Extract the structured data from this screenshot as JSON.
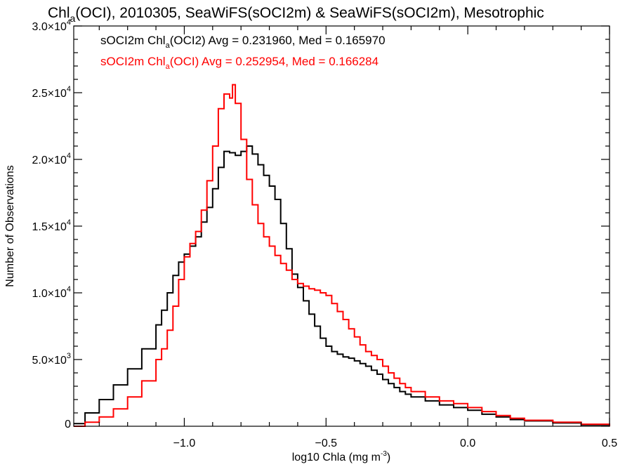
{
  "colors": {
    "series_1": "#000000",
    "series_2": "#ff0000",
    "axes": "#000000",
    "background": "#ffffff"
  },
  "chart_data": {
    "type": "line",
    "title": {
      "prefix": "Chl",
      "prefix_sub": "a",
      "rest": "(OCI), 2010305, SeaWiFS(sOCI2m) & SeaWiFS(sOCI2m), Mesotrophic"
    },
    "xlabel": {
      "main": "log10 Chla (mg m",
      "sup": "-3",
      "end": ")"
    },
    "ylabel": "Number of Observations",
    "xlim": [
      -1.39,
      0.5
    ],
    "ylim": [
      0,
      30000
    ],
    "x_ticks": [
      {
        "value": -1.0,
        "label": "−1.0"
      },
      {
        "value": -0.5,
        "label": "−0.5"
      },
      {
        "value": 0.0,
        "label": "0.0"
      },
      {
        "value": 0.5,
        "label": "0.5"
      }
    ],
    "y_ticks": [
      {
        "value": 0,
        "mantissa": "0",
        "exponent": ""
      },
      {
        "value": 5000,
        "mantissa": "5.0×10",
        "exponent": "3"
      },
      {
        "value": 10000,
        "mantissa": "1.0×10",
        "exponent": "4"
      },
      {
        "value": 15000,
        "mantissa": "1.5×10",
        "exponent": "4"
      },
      {
        "value": 20000,
        "mantissa": "2.0×10",
        "exponent": "4"
      },
      {
        "value": 25000,
        "mantissa": "2.5×10",
        "exponent": "4"
      },
      {
        "value": 30000,
        "mantissa": "3.0×10",
        "exponent": "4"
      }
    ],
    "legend_position": "top-left",
    "legend": [
      {
        "pre": "sOCI2m Chl",
        "sub": "a",
        "post": "(OCI2) Avg = 0.231960, Med = 0.165970",
        "color": "#000000"
      },
      {
        "pre": "sOCI2m Chl",
        "sub": "a",
        "post": "(OCI) Avg = 0.252954, Med = 0.166284",
        "color": "#ff0000"
      }
    ],
    "series": [
      {
        "color": "#000000",
        "points": [
          [
            -1.39,
            200
          ],
          [
            -1.35,
            1000
          ],
          [
            -1.3,
            2000
          ],
          [
            -1.25,
            3100
          ],
          [
            -1.2,
            4300
          ],
          [
            -1.15,
            5800
          ],
          [
            -1.1,
            7600
          ],
          [
            -1.08,
            8700
          ],
          [
            -1.06,
            10000
          ],
          [
            -1.04,
            11300
          ],
          [
            -1.02,
            12300
          ],
          [
            -1.0,
            12900
          ],
          [
            -0.98,
            13500
          ],
          [
            -0.96,
            14200
          ],
          [
            -0.94,
            15300
          ],
          [
            -0.92,
            16400
          ],
          [
            -0.9,
            17800
          ],
          [
            -0.88,
            19400
          ],
          [
            -0.86,
            20600
          ],
          [
            -0.84,
            20500
          ],
          [
            -0.82,
            20300
          ],
          [
            -0.8,
            20600
          ],
          [
            -0.78,
            21000
          ],
          [
            -0.76,
            20400
          ],
          [
            -0.74,
            19600
          ],
          [
            -0.72,
            18800
          ],
          [
            -0.7,
            18000
          ],
          [
            -0.68,
            17000
          ],
          [
            -0.66,
            15200
          ],
          [
            -0.64,
            13300
          ],
          [
            -0.62,
            11400
          ],
          [
            -0.6,
            10400
          ],
          [
            -0.58,
            9400
          ],
          [
            -0.56,
            8400
          ],
          [
            -0.54,
            7500
          ],
          [
            -0.52,
            6600
          ],
          [
            -0.5,
            6000
          ],
          [
            -0.48,
            5600
          ],
          [
            -0.46,
            5400
          ],
          [
            -0.44,
            5200
          ],
          [
            -0.42,
            5100
          ],
          [
            -0.4,
            4900
          ],
          [
            -0.38,
            4700
          ],
          [
            -0.36,
            4500
          ],
          [
            -0.34,
            4200
          ],
          [
            -0.32,
            3900
          ],
          [
            -0.3,
            3500
          ],
          [
            -0.28,
            3200
          ],
          [
            -0.26,
            2900
          ],
          [
            -0.24,
            2600
          ],
          [
            -0.22,
            2400
          ],
          [
            -0.2,
            2200
          ],
          [
            -0.15,
            1900
          ],
          [
            -0.1,
            1600
          ],
          [
            -0.05,
            1400
          ],
          [
            0.0,
            1200
          ],
          [
            0.05,
            900
          ],
          [
            0.1,
            700
          ],
          [
            0.15,
            500
          ],
          [
            0.2,
            400
          ],
          [
            0.3,
            250
          ],
          [
            0.4,
            100
          ],
          [
            0.5,
            0
          ]
        ]
      },
      {
        "color": "#ff0000",
        "points": [
          [
            -1.39,
            0
          ],
          [
            -1.35,
            300
          ],
          [
            -1.3,
            700
          ],
          [
            -1.25,
            1300
          ],
          [
            -1.2,
            2200
          ],
          [
            -1.15,
            3400
          ],
          [
            -1.1,
            5000
          ],
          [
            -1.08,
            5800
          ],
          [
            -1.06,
            7200
          ],
          [
            -1.04,
            9000
          ],
          [
            -1.02,
            11000
          ],
          [
            -1.0,
            12700
          ],
          [
            -0.98,
            13700
          ],
          [
            -0.96,
            14600
          ],
          [
            -0.94,
            16200
          ],
          [
            -0.92,
            18400
          ],
          [
            -0.9,
            21000
          ],
          [
            -0.88,
            23800
          ],
          [
            -0.86,
            24900
          ],
          [
            -0.84,
            24600
          ],
          [
            -0.83,
            25600
          ],
          [
            -0.82,
            24200
          ],
          [
            -0.8,
            21500
          ],
          [
            -0.78,
            18500
          ],
          [
            -0.76,
            16600
          ],
          [
            -0.74,
            15200
          ],
          [
            -0.72,
            14200
          ],
          [
            -0.7,
            13500
          ],
          [
            -0.68,
            12800
          ],
          [
            -0.66,
            12200
          ],
          [
            -0.64,
            11700
          ],
          [
            -0.62,
            11000
          ],
          [
            -0.6,
            10700
          ],
          [
            -0.58,
            10500
          ],
          [
            -0.56,
            10300
          ],
          [
            -0.54,
            10200
          ],
          [
            -0.52,
            10000
          ],
          [
            -0.5,
            9800
          ],
          [
            -0.48,
            9200
          ],
          [
            -0.46,
            8600
          ],
          [
            -0.44,
            8000
          ],
          [
            -0.42,
            7300
          ],
          [
            -0.4,
            6700
          ],
          [
            -0.38,
            6100
          ],
          [
            -0.36,
            5600
          ],
          [
            -0.34,
            5300
          ],
          [
            -0.32,
            5000
          ],
          [
            -0.3,
            4500
          ],
          [
            -0.28,
            4000
          ],
          [
            -0.26,
            3600
          ],
          [
            -0.24,
            3200
          ],
          [
            -0.22,
            2900
          ],
          [
            -0.2,
            2600
          ],
          [
            -0.15,
            2200
          ],
          [
            -0.1,
            1900
          ],
          [
            -0.05,
            1700
          ],
          [
            0.0,
            1400
          ],
          [
            0.05,
            1100
          ],
          [
            0.1,
            800
          ],
          [
            0.15,
            600
          ],
          [
            0.2,
            450
          ],
          [
            0.3,
            300
          ],
          [
            0.4,
            150
          ],
          [
            0.5,
            0
          ]
        ]
      }
    ]
  }
}
